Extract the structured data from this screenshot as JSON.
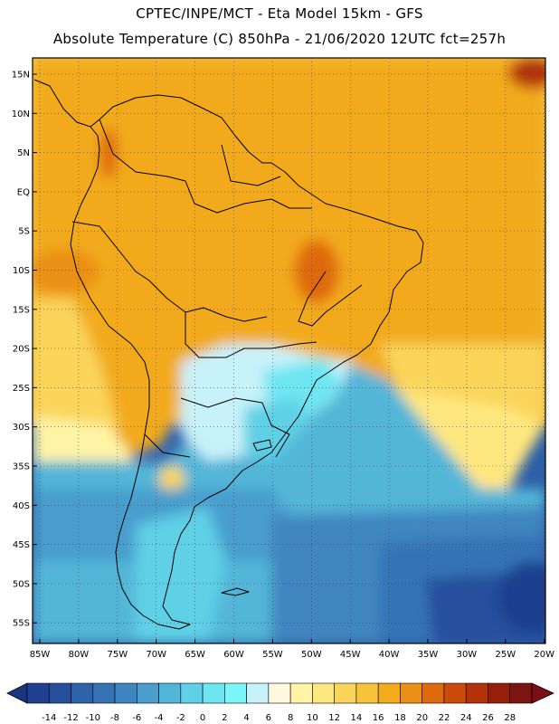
{
  "header": {
    "line1": "CPTEC/INPE/MCT -  Eta Model 15km - GFS",
    "line2": "Absolute Temperature (C) 850hPa - 21/06/2020 12UTC fct=257h"
  },
  "map": {
    "lat_labels": [
      "15N",
      "10N",
      "5N",
      "EQ",
      "5S",
      "10S",
      "15S",
      "20S",
      "25S",
      "30S",
      "35S",
      "40S",
      "45S",
      "50S",
      "55S"
    ],
    "lon_labels": [
      "85W",
      "80W",
      "75W",
      "70W",
      "65W",
      "60W",
      "55W",
      "50W",
      "45W",
      "40W",
      "35W",
      "30W",
      "25W",
      "20W"
    ]
  },
  "colorbar": {
    "labels": [
      "-14",
      "-12",
      "-10",
      "-8",
      "-6",
      "-4",
      "-2",
      "0",
      "2",
      "4",
      "6",
      "8",
      "10",
      "12",
      "14",
      "16",
      "18",
      "20",
      "22",
      "24",
      "26",
      "28"
    ],
    "colors": [
      "#1f3f8f",
      "#264f9c",
      "#2e62aa",
      "#3573b5",
      "#3f86c0",
      "#4a9dcc",
      "#52b6d8",
      "#5fd0e6",
      "#6ee6f2",
      "#7cf5fa",
      "#c8f2fa",
      "#fff8e0",
      "#fff4a6",
      "#ffe780",
      "#fad55a",
      "#f6c33a",
      "#f2ab1b",
      "#ea9016",
      "#df6a0e",
      "#cc4a0a",
      "#b33209",
      "#961f0b",
      "#7a1512"
    ],
    "under_color": "#1b3580",
    "over_color": "#7a0f16"
  }
}
